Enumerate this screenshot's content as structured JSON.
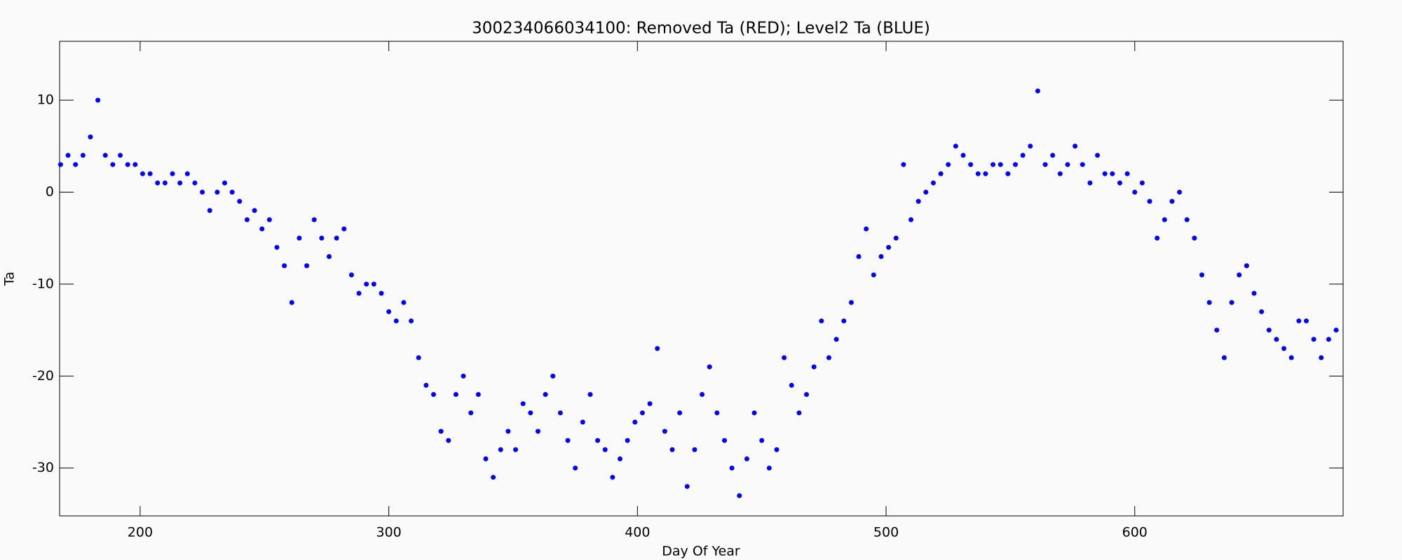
{
  "chart_data": {
    "type": "scatter",
    "title": "300234066034100: Removed Ta (RED); Level2 Ta (BLUE)",
    "x_label": "Day Of Year",
    "y_label": "Ta",
    "xlim": [
      167.6,
      683.8
    ],
    "ylim": [
      -35.2,
      16.4
    ],
    "xticks": [
      200,
      300,
      400,
      500,
      600
    ],
    "yticks": [
      -30,
      -20,
      -10,
      0,
      10
    ],
    "series": [
      {
        "color": "#0000ff",
        "x": [
          168,
          171,
          174,
          177,
          180,
          183,
          186,
          189,
          192,
          195,
          198,
          201,
          204,
          207,
          210,
          213,
          216,
          219,
          222,
          225,
          228,
          231,
          234,
          237,
          240,
          243,
          246,
          249,
          252,
          255,
          258,
          261,
          264,
          267,
          270,
          273,
          276,
          279,
          282,
          285,
          288,
          291,
          294,
          297,
          300,
          303,
          306,
          309,
          312,
          315,
          318,
          321,
          324,
          327,
          330,
          333,
          336,
          339,
          342,
          345,
          348,
          351,
          354,
          357,
          360,
          363,
          366,
          369,
          372,
          375,
          378,
          381,
          384,
          387,
          390,
          393,
          396,
          399,
          402,
          405,
          408,
          411,
          414,
          417,
          420,
          423,
          426,
          429,
          432,
          435,
          438,
          441,
          444,
          447,
          450,
          453,
          456,
          459,
          462,
          465,
          468,
          471,
          474,
          477,
          480,
          483,
          486,
          489,
          492,
          495,
          498,
          501,
          504,
          507,
          510,
          513,
          516,
          519,
          522,
          525,
          528,
          531,
          534,
          537,
          540,
          543,
          546,
          549,
          552,
          555,
          558,
          561,
          564,
          567,
          570,
          573,
          576,
          579,
          582,
          585,
          588,
          591,
          594,
          597,
          600,
          603,
          606,
          609,
          612,
          615,
          618,
          621,
          624,
          627,
          630,
          633,
          636,
          639,
          642,
          645,
          648,
          651,
          654,
          657,
          660,
          663,
          666,
          669,
          672,
          675,
          678,
          681
        ],
        "values": [
          3,
          4,
          3,
          4,
          6,
          10,
          4,
          3,
          4,
          3,
          3,
          2,
          2,
          1,
          1,
          2,
          1,
          2,
          1,
          0,
          -2,
          0,
          1,
          0,
          -1,
          -3,
          -2,
          -4,
          -3,
          -6,
          -8,
          -12,
          -5,
          -8,
          -3,
          -5,
          -7,
          -5,
          -4,
          -9,
          -11,
          -10,
          -10,
          -11,
          -13,
          -14,
          -12,
          -14,
          -18,
          -21,
          -22,
          -26,
          -27,
          -22,
          -20,
          -24,
          -22,
          -29,
          -31,
          -28,
          -26,
          -28,
          -23,
          -24,
          -26,
          -22,
          -20,
          -24,
          -27,
          -30,
          -25,
          -22,
          -27,
          -28,
          -31,
          -29,
          -27,
          -25,
          -24,
          -23,
          -17,
          -26,
          -28,
          -24,
          -32,
          -28,
          -22,
          -19,
          -24,
          -27,
          -30,
          -33,
          -29,
          -24,
          -27,
          -30,
          -28,
          -18,
          -21,
          -24,
          -22,
          -19,
          -14,
          -18,
          -16,
          -14,
          -12,
          -7,
          -4,
          -9,
          -7,
          -6,
          -5,
          3,
          -3,
          -1,
          0,
          1,
          2,
          3,
          5,
          4,
          3,
          2,
          2,
          3,
          3,
          2,
          3,
          4,
          5,
          11,
          3,
          4,
          2,
          3,
          5,
          3,
          1,
          4,
          2,
          2,
          1,
          2,
          0,
          1,
          -1,
          -5,
          -3,
          -1,
          0,
          -3,
          -5,
          -9,
          -12,
          -15,
          -18,
          -12,
          -9,
          -8,
          -11,
          -13,
          -15,
          -16,
          -17,
          -18,
          -14,
          -14,
          -16,
          -18,
          -16,
          -15
        ]
      }
    ]
  }
}
